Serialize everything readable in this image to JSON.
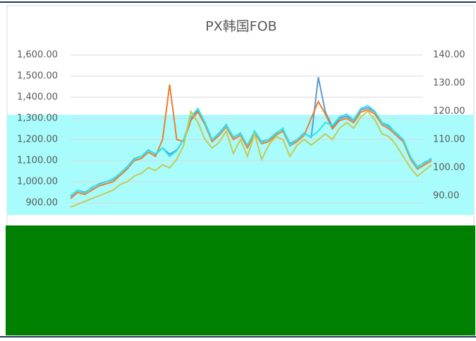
{
  "chart_data": {
    "type": "line",
    "title": "PX韩国FOB",
    "categories": [
      null,
      null,
      null,
      null,
      null,
      null,
      null,
      null,
      null,
      null,
      null,
      null,
      null,
      null,
      null,
      null,
      null,
      null,
      null,
      null,
      null,
      null,
      null,
      null,
      null,
      null,
      null,
      null,
      null,
      null,
      null,
      null,
      null,
      null,
      null,
      null,
      null,
      null,
      null,
      null,
      null,
      null,
      null,
      null,
      null,
      null,
      null,
      null,
      null,
      null,
      null,
      null
    ],
    "series": [
      {
        "color": "#5b9bd5",
        "values": [
          930,
          960,
          950,
          970,
          990,
          1000,
          1010,
          1040,
          1070,
          1110,
          1120,
          1150,
          1130,
          1160,
          1130,
          1150,
          1200,
          1300,
          1340,
          1280,
          1200,
          1230,
          1270,
          1210,
          1230,
          1170,
          1240,
          1190,
          1200,
          1230,
          1250,
          1180,
          1200,
          1230,
          1210,
          1495,
          1330,
          1260,
          1300,
          1310,
          1290,
          1340,
          1350,
          1330,
          1280,
          1260,
          1230,
          1200,
          1120,
          1070,
          1090,
          1110
        ]
      },
      {
        "color": "#ed7d31",
        "values": [
          920,
          950,
          940,
          960,
          980,
          990,
          1000,
          1030,
          1060,
          1100,
          1110,
          1140,
          1120,
          1200,
          1460,
          1200,
          1190,
          1290,
          1330,
          1270,
          1190,
          1220,
          1260,
          1200,
          1220,
          1160,
          1230,
          1180,
          1190,
          1220,
          1240,
          1170,
          1190,
          1220,
          1300,
          1380,
          1320,
          1250,
          1290,
          1300,
          1280,
          1330,
          1340,
          1320,
          1270,
          1250,
          1220,
          1190,
          1110,
          1060,
          1080,
          1100
        ]
      },
      {
        "color": "#2ee6ea",
        "axis": "y2",
        "values": [
          90,
          92,
          91,
          93,
          94,
          95,
          96,
          98,
          100,
          103,
          104,
          106,
          105,
          107,
          104,
          106,
          110,
          118,
          121,
          116,
          110,
          112,
          115,
          111,
          112,
          108,
          113,
          109,
          110,
          112,
          114,
          108,
          110,
          112,
          111,
          113,
          116,
          115,
          118,
          119,
          117,
          121,
          122,
          120,
          116,
          115,
          112,
          110,
          104,
          100,
          102,
          103
        ]
      },
      {
        "color": "#c8c850",
        "axis": "y2",
        "values": [
          86,
          87,
          88,
          89,
          90,
          91,
          92,
          94,
          95,
          97,
          98,
          100,
          99,
          101,
          100,
          103,
          108,
          120,
          116,
          110,
          107,
          109,
          113,
          105,
          110,
          104,
          112,
          103,
          108,
          111,
          110,
          104,
          108,
          110,
          108,
          110,
          112,
          110,
          114,
          116,
          114,
          118,
          120,
          117,
          112,
          111,
          108,
          104,
          100,
          97,
          99,
          101
        ]
      }
    ],
    "ylim": [
      800,
      1600
    ],
    "yticks": [
      {
        "value": 900,
        "label": "900.00"
      },
      {
        "value": 1000,
        "label": "1,000.00"
      },
      {
        "value": 1100,
        "label": "1,100.00"
      },
      {
        "value": 1200,
        "label": "1,200.00"
      },
      {
        "value": 1300,
        "label": "1,300.00"
      },
      {
        "value": 1400,
        "label": "1,400.00"
      },
      {
        "value": 1500,
        "label": "1,500.00"
      },
      {
        "value": 1600,
        "label": "1,600.00"
      }
    ],
    "y2lim": [
      80,
      140
    ],
    "y2ticks": [
      {
        "value": 90,
        "label": "90.00"
      },
      {
        "value": 100,
        "label": "100.00"
      },
      {
        "value": 110,
        "label": "110.00"
      },
      {
        "value": 120,
        "label": "120.00"
      },
      {
        "value": 130,
        "label": "130.00"
      },
      {
        "value": 140,
        "label": "140.00"
      }
    ],
    "grid": true
  }
}
